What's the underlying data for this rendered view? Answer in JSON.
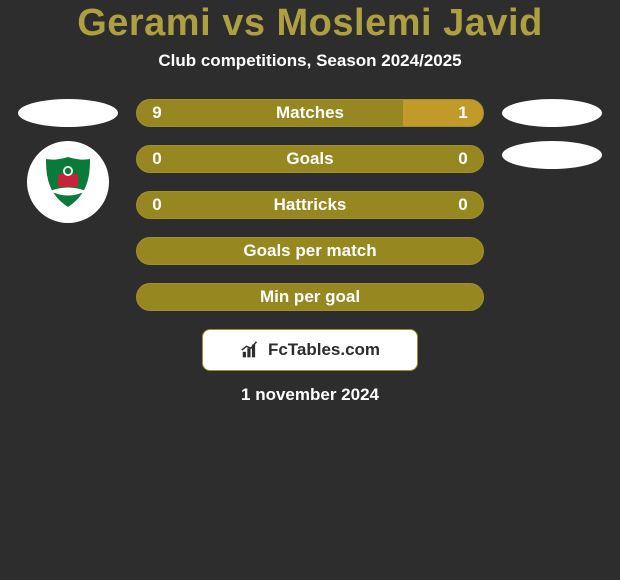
{
  "colors": {
    "background": "#2d2d2d",
    "accent_title": "#aea041",
    "text": "#ffffff",
    "pill": "#ffffff",
    "bar_track": "#a2912b",
    "bar_fill_left": "#978721",
    "bar_fill_right": "#c19a2a",
    "border": "#a2912b",
    "logo_bg": "#ffffff",
    "badge_bg": "#ffffff"
  },
  "header": {
    "title": "Gerami vs Moslemi Javid",
    "subtitle": "Club competitions, Season 2024/2025"
  },
  "left": {
    "has_team_badge": true
  },
  "right": {
    "has_team_badge": false
  },
  "bars": [
    {
      "label": "Matches",
      "left": "9",
      "right": "1",
      "left_pct": 77,
      "right_pct": 23
    },
    {
      "label": "Goals",
      "left": "0",
      "right": "0",
      "left_pct": 100,
      "right_pct": 0
    },
    {
      "label": "Hattricks",
      "left": "0",
      "right": "0",
      "left_pct": 100,
      "right_pct": 0
    },
    {
      "label": "Goals per match",
      "left": "",
      "right": "",
      "left_pct": 100,
      "right_pct": 0
    },
    {
      "label": "Min per goal",
      "left": "",
      "right": "",
      "left_pct": 100,
      "right_pct": 0
    }
  ],
  "footer": {
    "logo_text": "FcTables.com",
    "date": "1 november 2024"
  }
}
